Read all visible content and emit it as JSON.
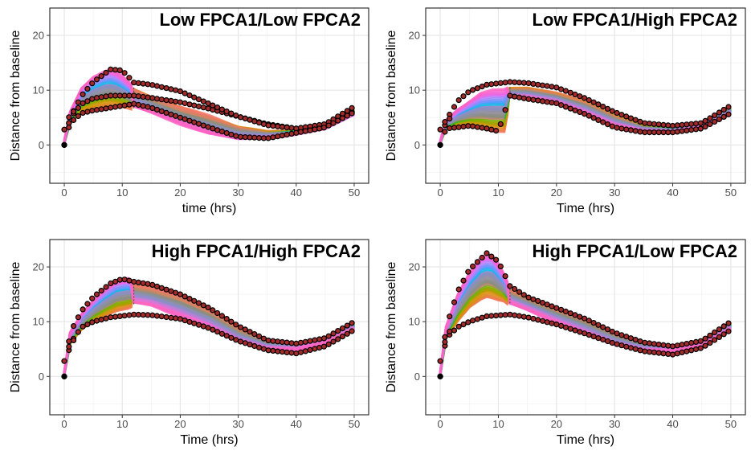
{
  "chart_data": [
    {
      "type": "line",
      "title": "Low FPCA1/Low FPCA2",
      "xlabel": "time (hrs)",
      "ylabel": "Distance from baseline",
      "xlim": [
        -2.5,
        52.5
      ],
      "ylim": [
        -7,
        25
      ],
      "xticks": [
        0,
        10,
        20,
        30,
        40,
        50
      ],
      "yticks": [
        0,
        10,
        20
      ],
      "grid": true,
      "band": {
        "x": [
          0,
          1,
          3,
          5,
          7,
          8,
          9,
          10,
          11,
          12,
          15,
          20,
          25,
          30,
          35,
          40,
          45,
          50
        ],
        "upper": [
          0.5,
          6,
          10.5,
          12.5,
          13.5,
          13.7,
          13.3,
          12.5,
          11.5,
          10.5,
          9,
          7,
          5.5,
          3.5,
          2.5,
          2.5,
          3.5,
          6.5
        ],
        "lower": [
          0.5,
          4,
          6,
          6.5,
          7,
          7,
          7,
          7,
          6.8,
          6.5,
          5.5,
          3.5,
          1.8,
          0.8,
          1,
          2,
          3,
          5.5
        ],
        "split": 12
      },
      "reference_lines": [
        {
          "x": [
            0,
            1,
            3,
            5,
            8,
            12,
            15,
            20,
            25,
            30,
            35,
            40,
            45,
            50
          ],
          "y": [
            0,
            5,
            7.5,
            8.5,
            9,
            9,
            8.6,
            7.8,
            6.6,
            5.2,
            3.8,
            3,
            3.5,
            6.2
          ]
        },
        {
          "x": [
            0,
            1,
            3,
            5,
            8,
            10,
            12,
            15,
            20,
            25,
            30,
            35,
            40,
            45,
            50
          ],
          "y": [
            0,
            5,
            9,
            11.5,
            13.8,
            13.6,
            11.4,
            11,
            9.8,
            7.5,
            5.2,
            3.6,
            3,
            3.8,
            7
          ]
        },
        {
          "x": [
            0,
            1,
            3,
            5,
            8,
            12,
            15,
            20,
            25,
            30,
            35,
            40,
            45,
            50
          ],
          "y": [
            0,
            4,
            5.8,
            6.3,
            6.8,
            7.5,
            6.8,
            5,
            3.2,
            1.5,
            1.2,
            2.2,
            3.2,
            6
          ]
        },
        {
          "x": [
            0,
            0.3,
            1,
            2
          ],
          "y": [
            2.8,
            4,
            5.5,
            6.5
          ]
        }
      ]
    },
    {
      "type": "line",
      "title": "Low FPCA1/High FPCA2",
      "xlabel": "Time (hrs)",
      "ylabel": "Distance from baseline",
      "xlim": [
        -2.5,
        52.5
      ],
      "ylim": [
        -7,
        25
      ],
      "xticks": [
        0,
        10,
        20,
        30,
        40,
        50
      ],
      "yticks": [
        0,
        10,
        20
      ],
      "grid": true,
      "band": {
        "x": [
          0,
          1,
          3,
          5,
          7,
          9,
          11,
          12,
          15,
          20,
          25,
          30,
          35,
          40,
          45,
          50
        ],
        "upper": [
          0.5,
          4.5,
          6.5,
          8,
          9.5,
          10,
          10,
          10.5,
          10.5,
          9.5,
          8,
          5.5,
          3.5,
          3,
          4,
          7
        ],
        "lower": [
          0.5,
          3,
          3.5,
          3.5,
          3,
          2.5,
          2.5,
          8.5,
          8.3,
          7.5,
          5.5,
          3.2,
          2.3,
          2.3,
          3,
          5.5
        ],
        "split": 12
      },
      "reference_lines": [
        {
          "x": [
            0,
            1,
            3,
            5,
            8,
            12,
            15,
            20,
            25,
            30,
            35,
            40,
            45,
            50
          ],
          "y": [
            0,
            4.5,
            8,
            9.8,
            11,
            11.5,
            11.3,
            10.5,
            8.5,
            6,
            4,
            3.5,
            4,
            7.2
          ]
        },
        {
          "x": [
            0,
            1,
            3,
            5,
            8,
            10,
            12,
            15,
            20,
            25,
            30,
            35,
            40,
            45,
            50
          ],
          "y": [
            0,
            3,
            3.2,
            3.5,
            3,
            2.5,
            9,
            8.4,
            7.6,
            5.6,
            3.2,
            2.3,
            2.3,
            3,
            5.8
          ]
        },
        {
          "x": [
            0,
            0.3,
            1,
            2
          ],
          "y": [
            2.8,
            3.5,
            4.5,
            5
          ]
        }
      ]
    },
    {
      "type": "line",
      "title": "High FPCA1/High FPCA2",
      "xlabel": "Time (hrs)",
      "ylabel": "Distance from baseline",
      "xlim": [
        -2.5,
        52.5
      ],
      "ylim": [
        -7,
        25
      ],
      "xticks": [
        0,
        10,
        20,
        30,
        40,
        50
      ],
      "yticks": [
        0,
        10,
        20
      ],
      "grid": true,
      "band": {
        "x": [
          0,
          1,
          3,
          5,
          7,
          9,
          11,
          12,
          15,
          20,
          25,
          30,
          35,
          40,
          45,
          50
        ],
        "upper": [
          0.5,
          8,
          11.5,
          14,
          16,
          17.5,
          17.8,
          17,
          16.5,
          15,
          12.5,
          9,
          6.5,
          6,
          7,
          10
        ],
        "lower": [
          0.5,
          6,
          8.5,
          10,
          11,
          12,
          12.5,
          13,
          12.5,
          10.5,
          8.5,
          6,
          4.8,
          4.8,
          6,
          8.5
        ],
        "split": 12
      },
      "reference_lines": [
        {
          "x": [
            0,
            1,
            3,
            5,
            8,
            12,
            15,
            20,
            25,
            30,
            35,
            40,
            45,
            50
          ],
          "y": [
            0,
            6,
            9,
            10,
            10.8,
            11.3,
            11.2,
            10.5,
            8.8,
            6.5,
            4.8,
            4.2,
            5.5,
            8.5
          ]
        },
        {
          "x": [
            0,
            1,
            3,
            5,
            8,
            10,
            12,
            15,
            20,
            25,
            30,
            35,
            40,
            45,
            50
          ],
          "y": [
            0,
            8,
            12,
            14.5,
            17,
            17.8,
            17.3,
            16.8,
            15,
            12.5,
            9.2,
            6.6,
            6,
            7,
            10
          ]
        },
        {
          "x": [
            0,
            0.3,
            1,
            2
          ],
          "y": [
            2.8,
            4,
            6,
            7
          ]
        }
      ]
    },
    {
      "type": "line",
      "title": "High FPCA1/Low FPCA2",
      "xlabel": "Time (hrs)",
      "ylabel": "Distance from baseline",
      "xlim": [
        -2.5,
        52.5
      ],
      "ylim": [
        -7,
        25
      ],
      "xticks": [
        0,
        10,
        20,
        30,
        40,
        50
      ],
      "yticks": [
        0,
        10,
        20
      ],
      "grid": true,
      "band": {
        "x": [
          0,
          1,
          3,
          5,
          7,
          8,
          9,
          10,
          11,
          12,
          15,
          20,
          25,
          30,
          35,
          40,
          45,
          50
        ],
        "upper": [
          0.5,
          9,
          15,
          19,
          21.8,
          22.2,
          22,
          20.5,
          18.5,
          16,
          14.5,
          12.5,
          10.5,
          8,
          6.2,
          5.5,
          6.5,
          10
        ],
        "lower": [
          0.5,
          7,
          10,
          12.5,
          14,
          14.5,
          14.3,
          14,
          13.8,
          13,
          11.8,
          9.5,
          7.5,
          5.5,
          4.5,
          4.5,
          5.5,
          8.5
        ],
        "split": 12
      },
      "reference_lines": [
        {
          "x": [
            0,
            1,
            3,
            5,
            8,
            12,
            15,
            20,
            25,
            30,
            35,
            40,
            45,
            50
          ],
          "y": [
            0,
            7,
            9,
            10,
            11,
            11.3,
            10.8,
            9.5,
            7.8,
            6,
            4.6,
            4,
            5.2,
            8.5
          ]
        },
        {
          "x": [
            0,
            1,
            3,
            5,
            8,
            10,
            12,
            15,
            20,
            25,
            30,
            35,
            40,
            45,
            50
          ],
          "y": [
            0,
            9,
            15.5,
            19.5,
            22.5,
            21,
            16.5,
            14.5,
            12.5,
            10.5,
            8,
            6.2,
            5.5,
            6.5,
            10
          ]
        },
        {
          "x": [
            0,
            0.3,
            1,
            2
          ],
          "y": [
            2.8,
            4.5,
            7,
            9
          ]
        }
      ]
    }
  ],
  "series_colors": [
    "#f8766d",
    "#d39200",
    "#93aa00",
    "#00ba38",
    "#00c19f",
    "#00b9e3",
    "#619cff",
    "#db72fb",
    "#ff61c3"
  ],
  "band_color": "#ff69b4",
  "marker_fill": "#a52a2a",
  "marker_edge": "#000000"
}
